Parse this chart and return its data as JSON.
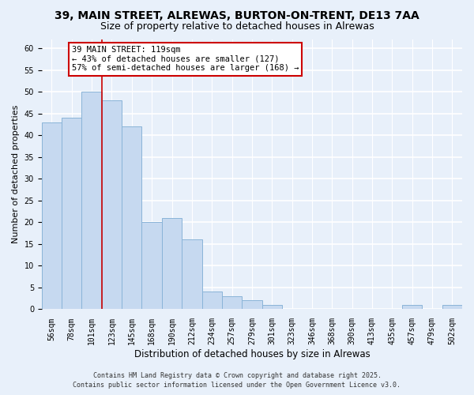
{
  "title": "39, MAIN STREET, ALREWAS, BURTON-ON-TRENT, DE13 7AA",
  "subtitle": "Size of property relative to detached houses in Alrewas",
  "xlabel": "Distribution of detached houses by size in Alrewas",
  "ylabel": "Number of detached properties",
  "bar_labels": [
    "56sqm",
    "78sqm",
    "101sqm",
    "123sqm",
    "145sqm",
    "168sqm",
    "190sqm",
    "212sqm",
    "234sqm",
    "257sqm",
    "279sqm",
    "301sqm",
    "323sqm",
    "346sqm",
    "368sqm",
    "390sqm",
    "413sqm",
    "435sqm",
    "457sqm",
    "479sqm",
    "502sqm"
  ],
  "bar_values": [
    43,
    44,
    50,
    48,
    42,
    20,
    21,
    16,
    4,
    3,
    2,
    1,
    0,
    0,
    0,
    0,
    0,
    0,
    1,
    0,
    1
  ],
  "bar_color": "#c6d9f0",
  "bar_edge_color": "#8ab4d8",
  "ylim": [
    0,
    62
  ],
  "yticks": [
    0,
    5,
    10,
    15,
    20,
    25,
    30,
    35,
    40,
    45,
    50,
    55,
    60
  ],
  "vline_x": 2.5,
  "vline_color": "#cc0000",
  "annotation_line1": "39 MAIN STREET: 119sqm",
  "annotation_line2": "← 43% of detached houses are smaller (127)",
  "annotation_line3": "57% of semi-detached houses are larger (168) →",
  "annotation_box_color": "#ffffff",
  "annotation_box_edge": "#cc0000",
  "bg_color": "#e8f0fa",
  "plot_bg_color": "#e8f0fa",
  "footer1": "Contains HM Land Registry data © Crown copyright and database right 2025.",
  "footer2": "Contains public sector information licensed under the Open Government Licence v3.0.",
  "title_fontsize": 10,
  "subtitle_fontsize": 9,
  "xlabel_fontsize": 8.5,
  "ylabel_fontsize": 8,
  "tick_fontsize": 7,
  "annotation_fontsize": 7.5,
  "footer_fontsize": 6
}
